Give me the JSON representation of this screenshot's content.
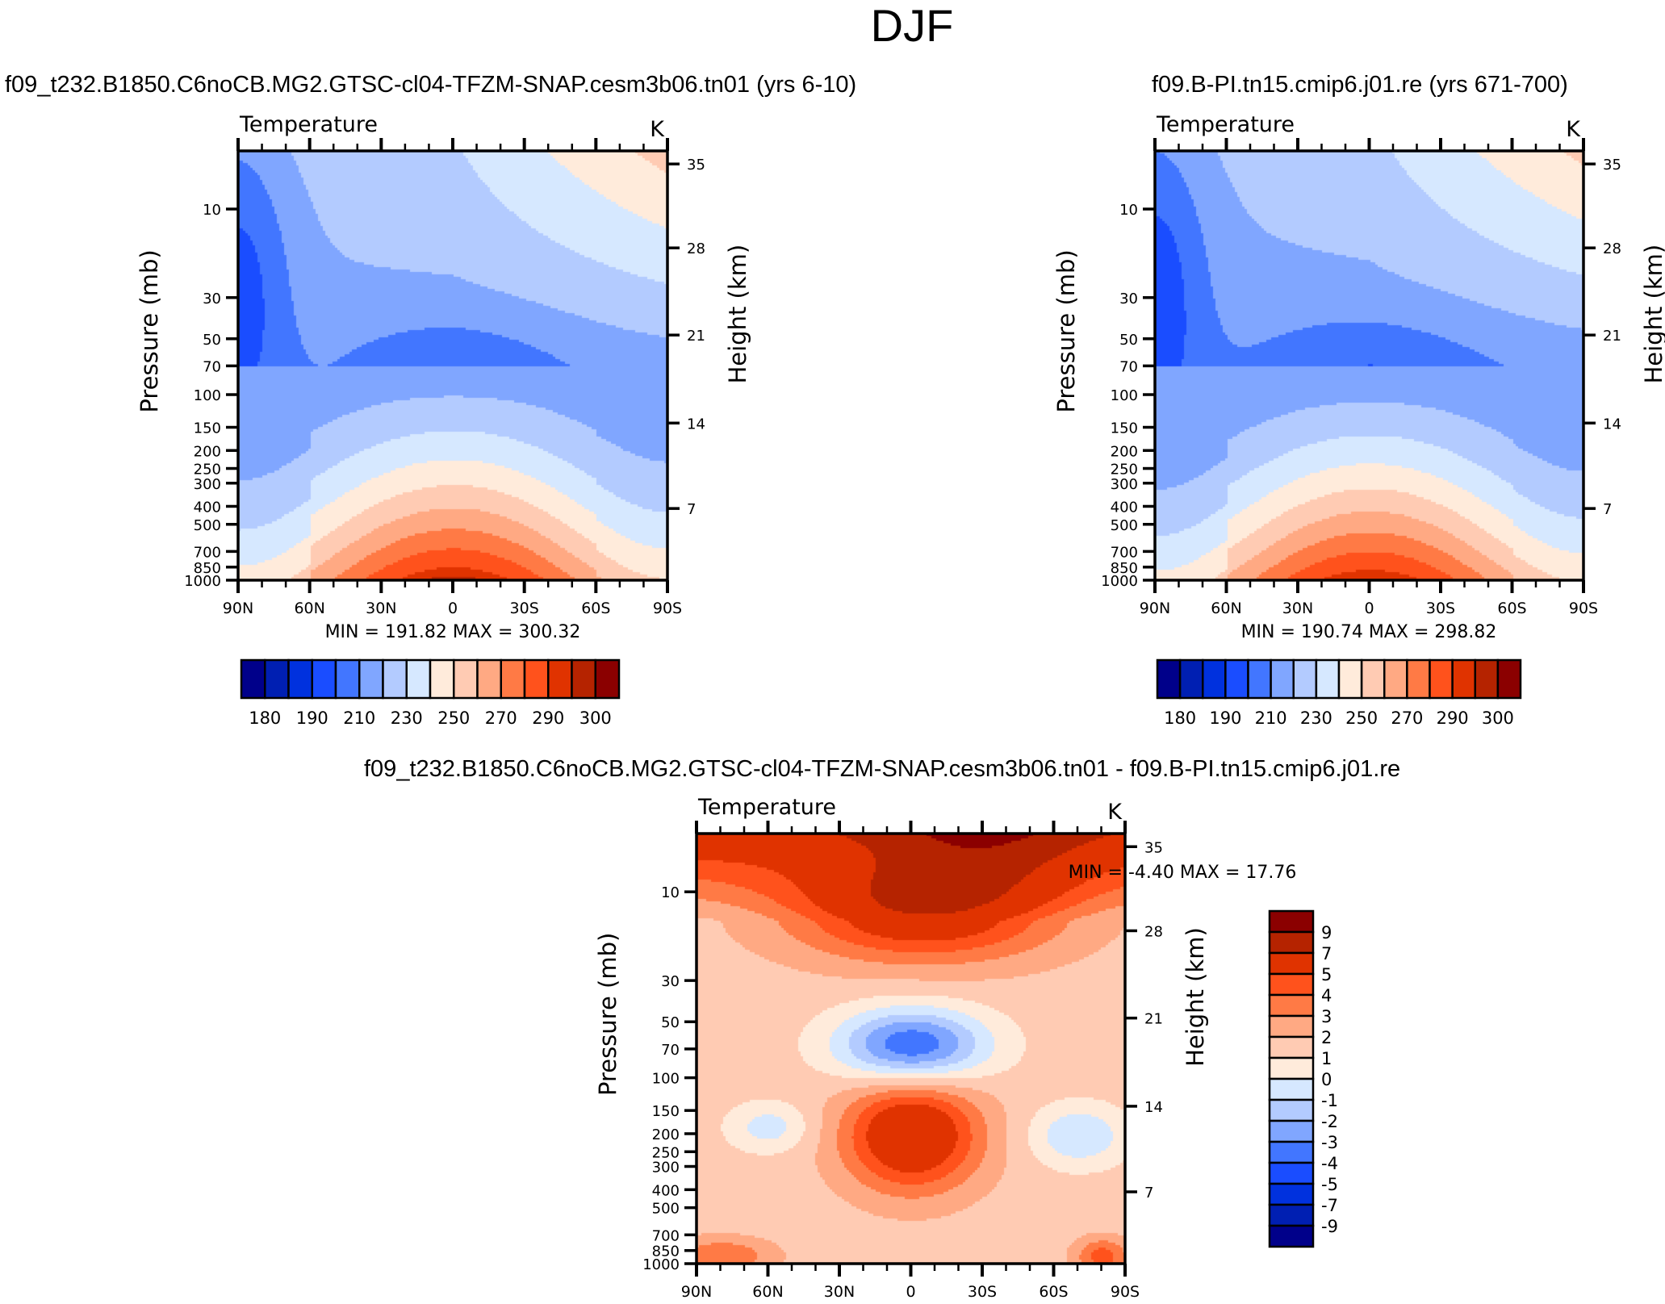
{
  "figure_title": "DJF",
  "chart_data": [
    {
      "type": "heatmap",
      "id": "panel1",
      "title": "f09_t232.B1850.C6noCB.MG2.GTSC-cl04-TFZM-SNAP.cesm3b06.tn01 (yrs 6-10)",
      "left_string": "Temperature",
      "right_string": "K",
      "xlabel": "",
      "ylabel": "Pressure (mb)",
      "ylabel_right": "Height (km)",
      "x_ticks": [
        "90N",
        "60N",
        "30N",
        "0",
        "30S",
        "60S",
        "90S"
      ],
      "x_range": [
        90,
        -90
      ],
      "y_ticks": [
        10,
        30,
        50,
        70,
        100,
        150,
        200,
        250,
        300,
        400,
        500,
        700,
        850,
        1000
      ],
      "y_range_mb": [
        1000,
        4.86
      ],
      "y_scale": "log",
      "y_right_ticks": [
        35,
        28,
        21,
        14,
        7
      ],
      "min_max_text": "MIN = 191.82  MAX = 300.32",
      "min": 191.82,
      "max": 300.32,
      "colorbar": {
        "orientation": "horizontal",
        "levels": [
          180,
          185,
          190,
          200,
          210,
          220,
          230,
          240,
          250,
          260,
          270,
          280,
          290,
          295,
          300
        ],
        "labels": [
          "180",
          "190",
          "210",
          "230",
          "250",
          "270",
          "290",
          "300"
        ],
        "colors": [
          "#00008a",
          "#001fb2",
          "#0031de",
          "#1a4dff",
          "#4276ff",
          "#80a6ff",
          "#b3cbff",
          "#d6e8ff",
          "#ffebdb",
          "#ffcbb3",
          "#ffa983",
          "#ff7a45",
          "#ff521c",
          "#e03300",
          "#b52300",
          "#8b0000"
        ]
      }
    },
    {
      "type": "heatmap",
      "id": "panel2",
      "title": "f09.B-PI.tn15.cmip6.j01.re (yrs 671-700)",
      "left_string": "Temperature",
      "right_string": "K",
      "xlabel": "",
      "ylabel": "Pressure (mb)",
      "ylabel_right": "Height (km)",
      "x_ticks": [
        "90N",
        "60N",
        "30N",
        "0",
        "30S",
        "60S",
        "90S"
      ],
      "x_range": [
        90,
        -90
      ],
      "y_ticks": [
        10,
        30,
        50,
        70,
        100,
        150,
        200,
        250,
        300,
        400,
        500,
        700,
        850,
        1000
      ],
      "y_range_mb": [
        1000,
        4.86
      ],
      "y_scale": "log",
      "y_right_ticks": [
        35,
        28,
        21,
        14,
        7
      ],
      "min_max_text": "MIN = 190.74  MAX = 298.82",
      "min": 190.74,
      "max": 298.82,
      "colorbar": {
        "orientation": "horizontal",
        "levels": [
          180,
          185,
          190,
          200,
          210,
          220,
          230,
          240,
          250,
          260,
          270,
          280,
          290,
          295,
          300
        ],
        "labels": [
          "180",
          "190",
          "210",
          "230",
          "250",
          "270",
          "290",
          "300"
        ],
        "colors": [
          "#00008a",
          "#001fb2",
          "#0031de",
          "#1a4dff",
          "#4276ff",
          "#80a6ff",
          "#b3cbff",
          "#d6e8ff",
          "#ffebdb",
          "#ffcbb3",
          "#ffa983",
          "#ff7a45",
          "#ff521c",
          "#e03300",
          "#b52300",
          "#8b0000"
        ]
      }
    },
    {
      "type": "heatmap",
      "id": "panel3",
      "title": "f09_t232.B1850.C6noCB.MG2.GTSC-cl04-TFZM-SNAP.cesm3b06.tn01 - f09.B-PI.tn15.cmip6.j01.re",
      "left_string": "Temperature",
      "right_string": "K",
      "xlabel": "",
      "ylabel": "Pressure (mb)",
      "ylabel_right": "Height (km)",
      "x_ticks": [
        "90N",
        "60N",
        "30N",
        "0",
        "30S",
        "60S",
        "90S"
      ],
      "x_range": [
        90,
        -90
      ],
      "y_ticks": [
        10,
        30,
        50,
        70,
        100,
        150,
        200,
        250,
        300,
        400,
        500,
        700,
        850,
        1000
      ],
      "y_range_mb": [
        1000,
        4.86
      ],
      "y_scale": "log",
      "y_right_ticks": [
        35,
        28,
        21,
        14,
        7
      ],
      "min_max_text": "MIN =  -4.40  MAX =  17.76",
      "min": -4.4,
      "max": 17.76,
      "colorbar": {
        "orientation": "vertical",
        "levels": [
          -9,
          -7,
          -5,
          -4,
          -3,
          -2,
          -1,
          0,
          1,
          2,
          3,
          4,
          5,
          7,
          9
        ],
        "labels": [
          "9",
          "7",
          "5",
          "4",
          "3",
          "2",
          "1",
          "0",
          "-1",
          "-2",
          "-3",
          "-4",
          "-5",
          "-7",
          "-9"
        ],
        "colors": [
          "#00008a",
          "#001fb2",
          "#0031de",
          "#1a4dff",
          "#4276ff",
          "#80a6ff",
          "#b3cbff",
          "#d6e8ff",
          "#ffebdb",
          "#ffcbb3",
          "#ffa983",
          "#ff7a45",
          "#ff521c",
          "#e03300",
          "#b52300",
          "#8b0000"
        ]
      }
    }
  ]
}
